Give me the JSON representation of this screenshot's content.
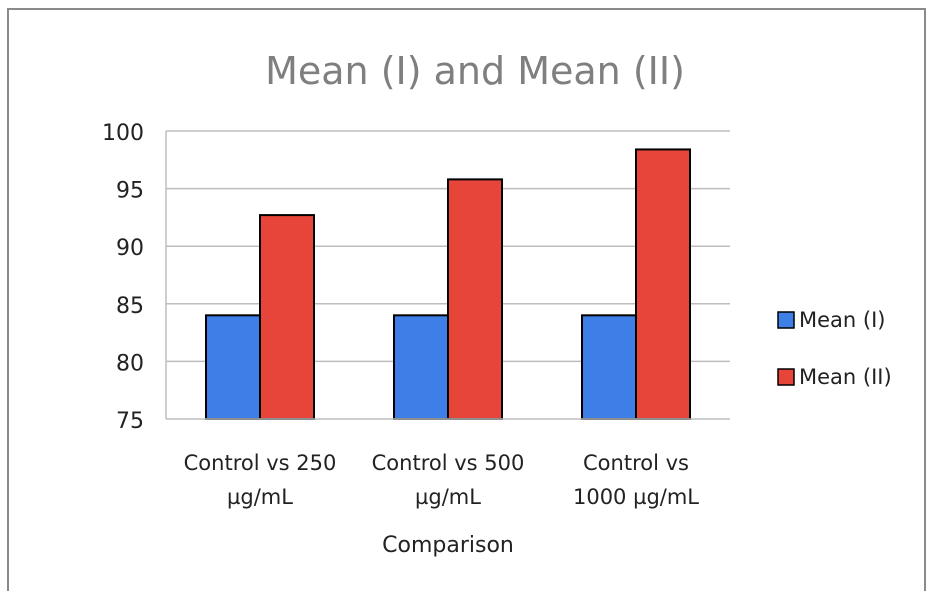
{
  "chart_data": {
    "type": "bar",
    "title": "Mean (I) and Mean (II)",
    "xlabel": "Comparison",
    "ylabel": "",
    "categories": [
      [
        "Control vs 250",
        "µg/mL"
      ],
      [
        "Control vs 500",
        "µg/mL"
      ],
      [
        "Control vs",
        "1000 µg/mL"
      ]
    ],
    "series": [
      {
        "name": "Mean (I)",
        "color": "#3d7fe6",
        "values": [
          84.0,
          84.0,
          84.0
        ]
      },
      {
        "name": "Mean (II)",
        "color": "#e8453a",
        "values": [
          92.7,
          95.8,
          98.4
        ]
      }
    ],
    "ylim": [
      75,
      100
    ],
    "yticks": [
      75,
      80,
      85,
      90,
      95,
      100
    ],
    "grid": true,
    "legend_position": "right"
  }
}
